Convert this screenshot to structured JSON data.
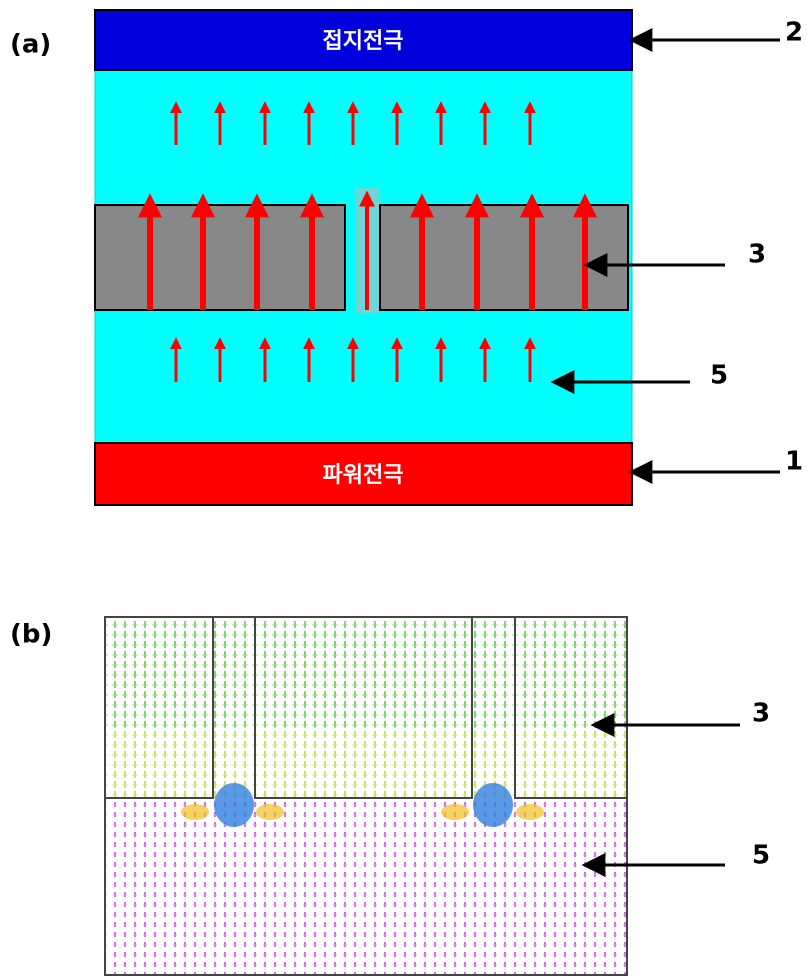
{
  "panel_a": {
    "tag": "(a)",
    "top_electrode": "접지전극",
    "bottom_electrode": "파워전극",
    "callouts": [
      "2",
      "3",
      "5",
      "1"
    ]
  },
  "panel_b": {
    "tag": "(b)",
    "callouts": [
      "3",
      "5"
    ]
  }
}
